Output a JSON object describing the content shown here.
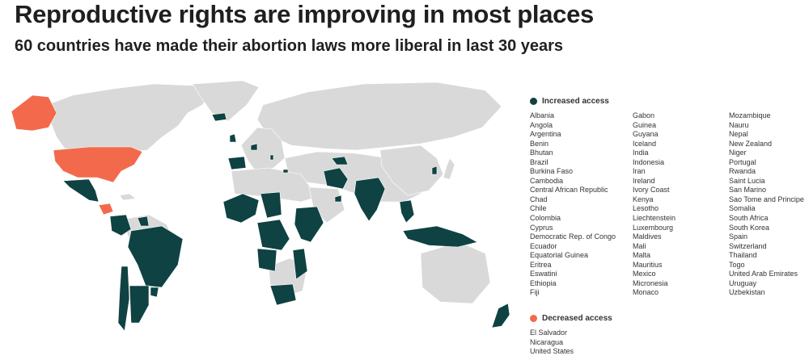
{
  "title": "Reproductive rights are improving in most places",
  "subtitle": "60 countries have made their abortion laws more liberal in last 30 years",
  "colors": {
    "increased": "#0f4242",
    "decreased": "#f26a4b",
    "unchanged": "#d9d9d9",
    "water": "#ffffff"
  },
  "legend": {
    "increased_label": "Increased access",
    "decreased_label": "Decreased access"
  },
  "increased_countries": [
    "Albania",
    "Angola",
    "Argentina",
    "Benin",
    "Bhutan",
    "Brazil",
    "Burkina Faso",
    "Cambodia",
    "Central African Republic",
    "Chad",
    "Chile",
    "Colombia",
    "Cyprus",
    "Democratic Rep. of Congo",
    "Ecuador",
    "Equatorial Guinea",
    "Eritrea",
    "Eswatini",
    "Ethiopia",
    "Fiji",
    "Gabon",
    "Guinea",
    "Guyana",
    "Iceland",
    "India",
    "Indonesia",
    "Iran",
    "Ireland",
    "Ivory Coast",
    "Kenya",
    "Lesotho",
    "Liechtenstein",
    "Luxembourg",
    "Maldives",
    "Mali",
    "Malta",
    "Mauritius",
    "Mexico",
    "Micronesia",
    "Monaco",
    "Mozambique",
    "Nauru",
    "Nepal",
    "New Zealand",
    "Niger",
    "Portugal",
    "Rwanda",
    "Saint Lucia",
    "San Marino",
    "Sao Tome and Principe",
    "Somalia",
    "South Africa",
    "South Korea",
    "Spain",
    "Switzerland",
    "Thailand",
    "Togo",
    "United Arab Emirates",
    "Uruguay",
    "Uzbekistan"
  ],
  "decreased_countries": [
    "El Salvador",
    "Nicaragua",
    "United States"
  ]
}
